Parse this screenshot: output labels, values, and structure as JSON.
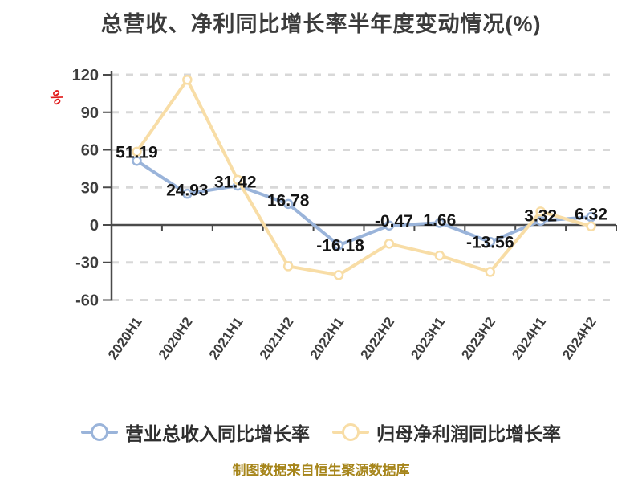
{
  "chart_data": {
    "type": "line",
    "title": "总营收、净利同比增长率半年度变动情况(%)",
    "y_axis_unit": "%",
    "categories": [
      "2020H1",
      "2020H2",
      "2021H1",
      "2021H2",
      "2022H1",
      "2022H2",
      "2023H1",
      "2023H2",
      "2024H1",
      "2024H2"
    ],
    "series": [
      {
        "name": "营业总收入同比增长率",
        "color": "#9ab4da",
        "values": [
          51.19,
          24.93,
          31.42,
          16.78,
          -16.18,
          -0.47,
          1.66,
          -13.56,
          3.32,
          6.32
        ],
        "labels_shown": true
      },
      {
        "name": "归母净利润同比增长率",
        "color": "#f8dda6",
        "values": [
          58.5,
          116,
          36,
          -33,
          -40,
          -15,
          -24.5,
          -37.5,
          10.7,
          -1.1
        ],
        "labels_shown": false
      }
    ],
    "ylim": [
      -60,
      120
    ],
    "yticks": [
      120,
      90,
      60,
      30,
      0,
      -30,
      -60
    ],
    "grid": "dashed horizontal, solid axis on zero",
    "legend_position": "bottom",
    "marker": "circle white fill colored ring"
  },
  "colors": {
    "title": "#3c3c3c",
    "axis": "#4a4a4a",
    "grid": "#d8d8d8",
    "tick_label": "#3d3d3d",
    "data_label": "#141414",
    "y_unit": "#e11d1d",
    "legend_text": "#2f2f2f",
    "source_note": "#a6851a",
    "marker_fill": "#ffffff"
  },
  "footer": {
    "source_note": "制图数据来自恒生聚源数据库"
  }
}
